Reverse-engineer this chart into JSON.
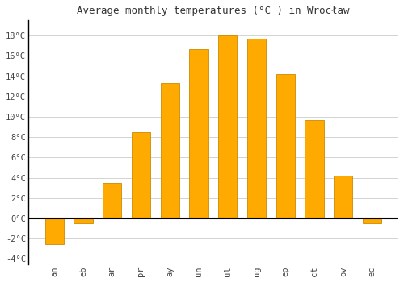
{
  "title": "Average monthly temperatures (°C ) in Wrocław",
  "months": [
    "an",
    "eb",
    "ar",
    "pr",
    "ay",
    "un",
    "ul",
    "ug",
    "ep",
    "ct",
    "ov",
    "ec"
  ],
  "values": [
    -2.5,
    -0.5,
    3.5,
    8.5,
    13.3,
    16.7,
    18.0,
    17.7,
    14.2,
    9.7,
    4.2,
    -0.5
  ],
  "bar_color": "#FFAA00",
  "bar_edge_color": "#CC8800",
  "background_color": "#FFFFFF",
  "grid_color": "#CCCCCC",
  "ylim": [
    -4.5,
    19.5
  ],
  "yticks": [
    -4,
    -2,
    0,
    2,
    4,
    6,
    8,
    10,
    12,
    14,
    16,
    18
  ],
  "title_fontsize": 9,
  "tick_fontsize": 7.5,
  "font_family": "monospace",
  "bar_width": 0.65
}
